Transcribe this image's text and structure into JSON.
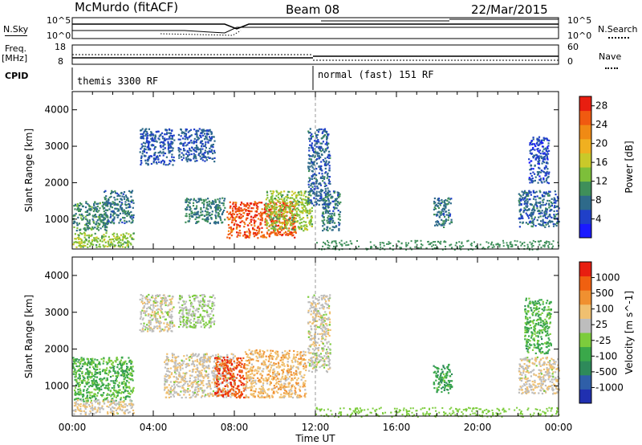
{
  "header": {
    "station": "McMurdo (fitACF)",
    "beam": "Beam 08",
    "date": "22/Mar/2015"
  },
  "top_panels": {
    "nsky_label": "N.Sky",
    "nsky_ticks": [
      "10^5",
      "10^0"
    ],
    "nsearch_label": "N.Search",
    "nsearch_ticks": [
      "10^5",
      "10^0"
    ],
    "freq_label": "Freq.",
    "freq_unit": "[MHz]",
    "freq_ticks": [
      "18",
      "8"
    ],
    "nave_label": "Nave",
    "nave_ticks": [
      "60",
      "0"
    ],
    "cpid_label": "CPID",
    "cpid_segments": [
      {
        "name": "themis 3300 RF",
        "start_hour": 0,
        "end_hour": 12
      },
      {
        "name": "normal (fast) 151 RF",
        "start_hour": 12,
        "end_hour": 24
      }
    ]
  },
  "chart_data": [
    {
      "type": "heatmap",
      "title": "",
      "xlabel": "Time UT",
      "ylabel": "Slant Range [km]",
      "xlim": [
        0,
        24
      ],
      "ylim": [
        180,
        4500
      ],
      "x_ticks": [
        "00:00",
        "04:00",
        "08:00",
        "12:00",
        "16:00",
        "20:00",
        "00:00"
      ],
      "y_ticks": [
        1000,
        2000,
        3000,
        4000
      ],
      "colorbar": {
        "label": "Power [dB]",
        "range": [
          0,
          30
        ],
        "ticks": [
          4,
          8,
          12,
          16,
          20,
          24,
          28
        ],
        "colors": [
          "#1a1aff",
          "#2040c8",
          "#2e6a8a",
          "#3f8f5a",
          "#7dbf3a",
          "#c9c92a",
          "#f0b020",
          "#f08a14",
          "#f05a10",
          "#e81e10"
        ]
      },
      "regions": [
        {
          "t0": 0.0,
          "t1": 1.7,
          "r0": 700,
          "r1": 1500,
          "value": 10
        },
        {
          "t0": 1.5,
          "t1": 3.0,
          "r0": 900,
          "r1": 1800,
          "value": 8
        },
        {
          "t0": 0.0,
          "t1": 3.0,
          "r0": 250,
          "r1": 650,
          "value": 14
        },
        {
          "t0": 3.3,
          "t1": 5.0,
          "r0": 2500,
          "r1": 3500,
          "value": 6
        },
        {
          "t0": 5.2,
          "t1": 7.0,
          "r0": 2600,
          "r1": 3500,
          "value": 6
        },
        {
          "t0": 5.5,
          "t1": 7.5,
          "r0": 900,
          "r1": 1600,
          "value": 9
        },
        {
          "t0": 7.6,
          "t1": 11.0,
          "r0": 500,
          "r1": 1500,
          "value": 26
        },
        {
          "t0": 9.5,
          "t1": 11.8,
          "r0": 700,
          "r1": 1800,
          "value": 14
        },
        {
          "t0": 11.6,
          "t1": 12.7,
          "r0": 1400,
          "r1": 3500,
          "value": 7
        },
        {
          "t0": 12.3,
          "t1": 13.2,
          "r0": 700,
          "r1": 1800,
          "value": 8
        },
        {
          "t0": 17.8,
          "t1": 18.7,
          "r0": 800,
          "r1": 1600,
          "value": 8
        },
        {
          "t0": 22.0,
          "t1": 24.0,
          "r0": 800,
          "r1": 1800,
          "value": 7
        },
        {
          "t0": 22.5,
          "t1": 23.5,
          "r0": 2000,
          "r1": 3300,
          "value": 5
        }
      ]
    },
    {
      "type": "heatmap",
      "title": "",
      "xlabel": "Time UT",
      "ylabel": "Slant Range [km]",
      "xlim": [
        0,
        24
      ],
      "ylim": [
        180,
        4500
      ],
      "x_ticks": [
        "00:00",
        "04:00",
        "08:00",
        "12:00",
        "16:00",
        "20:00",
        "00:00"
      ],
      "y_ticks": [
        1000,
        2000,
        3000,
        4000
      ],
      "colorbar": {
        "label": "Velocity [m s^-1]",
        "range": [
          -1200,
          1200
        ],
        "tick_labels": [
          "1000",
          "500",
          "100",
          "25",
          "-25",
          "-100",
          "-500",
          "-1000"
        ],
        "colors": [
          "#2030b0",
          "#2f5fa8",
          "#2e8a5a",
          "#3aa84a",
          "#7ccc3c",
          "#bdbdbd",
          "#f0c070",
          "#f09030",
          "#f06010",
          "#e81e10"
        ]
      },
      "regions": [
        {
          "t0": 0.0,
          "t1": 3.0,
          "r0": 600,
          "r1": 1800,
          "value": -300
        },
        {
          "t0": 0.0,
          "t1": 3.0,
          "r0": 250,
          "r1": 650,
          "value": 200
        },
        {
          "t0": 3.3,
          "t1": 5.0,
          "r0": 2500,
          "r1": 3500,
          "value": 150
        },
        {
          "t0": 5.2,
          "t1": 7.0,
          "r0": 2600,
          "r1": 3500,
          "value": 0
        },
        {
          "t0": 4.5,
          "t1": 8.0,
          "r0": 700,
          "r1": 1900,
          "value": 200
        },
        {
          "t0": 7.0,
          "t1": 8.5,
          "r0": 700,
          "r1": 1800,
          "value": 900
        },
        {
          "t0": 8.5,
          "t1": 11.5,
          "r0": 700,
          "r1": 2000,
          "value": 400
        },
        {
          "t0": 11.6,
          "t1": 12.7,
          "r0": 1400,
          "r1": 3500,
          "value": 150
        },
        {
          "t0": 17.8,
          "t1": 18.7,
          "r0": 800,
          "r1": 1600,
          "value": -400
        },
        {
          "t0": 22.0,
          "t1": 24.0,
          "r0": 800,
          "r1": 1800,
          "value": 200
        },
        {
          "t0": 22.3,
          "t1": 23.6,
          "r0": 1900,
          "r1": 3400,
          "value": -300
        }
      ]
    }
  ]
}
